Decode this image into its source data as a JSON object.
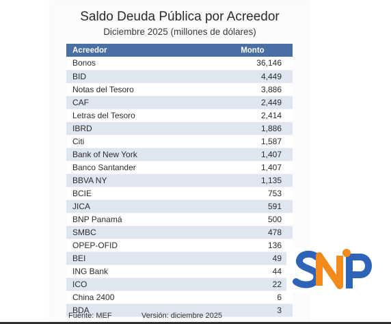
{
  "header": {
    "title": "Saldo Deuda Pública por Acreedor",
    "subtitle": "Diciembre 2025 (millones de dólares)"
  },
  "table": {
    "columns": [
      "Acreedor",
      "Monto"
    ],
    "rows": [
      {
        "creditor": "Bonos",
        "amount": "36,146"
      },
      {
        "creditor": "BID",
        "amount": "4,449"
      },
      {
        "creditor": "Notas del Tesoro",
        "amount": "3,886"
      },
      {
        "creditor": "CAF",
        "amount": "2,449"
      },
      {
        "creditor": "Letras del Tesoro",
        "amount": "2,414"
      },
      {
        "creditor": "IBRD",
        "amount": "1,886"
      },
      {
        "creditor": "Citi",
        "amount": "1,587"
      },
      {
        "creditor": "Bank of New York",
        "amount": "1,407"
      },
      {
        "creditor": "Banco Santander",
        "amount": "1,407"
      },
      {
        "creditor": "BBVA NY",
        "amount": "1,135"
      },
      {
        "creditor": "BCIE",
        "amount": "753"
      },
      {
        "creditor": "JICA",
        "amount": "591"
      },
      {
        "creditor": "BNP Panamá",
        "amount": "500"
      },
      {
        "creditor": "SMBC",
        "amount": "478"
      },
      {
        "creditor": "OPEP-OFID",
        "amount": "136"
      },
      {
        "creditor": "BEI",
        "amount": "49"
      },
      {
        "creditor": "ING Bank",
        "amount": "44"
      },
      {
        "creditor": "ICO",
        "amount": "22"
      },
      {
        "creditor": "China 2400",
        "amount": "6"
      },
      {
        "creditor": "BDA",
        "amount": "3"
      }
    ]
  },
  "footer": {
    "source": "Fuente: MEF",
    "version": "Versión: diciembre 2025"
  },
  "logo": {
    "text": "SNP",
    "colors": {
      "blue": "#2e63b8",
      "orange": "#f28a1c"
    }
  },
  "colors": {
    "header_bg": "#4a6fa5",
    "row_alt": "#dfe6f2"
  }
}
